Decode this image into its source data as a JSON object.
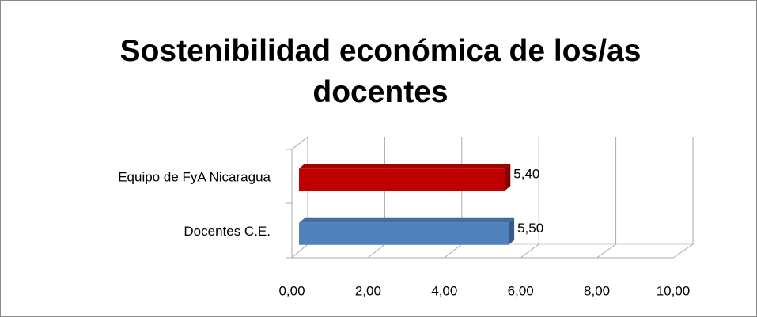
{
  "chart_data": {
    "type": "bar3d_horizontal",
    "title": "Sostenibilidad económica de los/as docentes",
    "categories": [
      "Docentes C.E.",
      "Equipo de FyA Nicaragua"
    ],
    "values": [
      5.5,
      5.4
    ],
    "value_labels": [
      "5,50",
      "5,40"
    ],
    "colors": [
      "#4f81bd",
      "#c00000"
    ],
    "xlim": [
      0,
      10
    ],
    "xticks": [
      {
        "value": 0,
        "label": "0,00"
      },
      {
        "value": 2,
        "label": "2,00"
      },
      {
        "value": 4,
        "label": "4,00"
      },
      {
        "value": 6,
        "label": "6,00"
      },
      {
        "value": 8,
        "label": "8,00"
      },
      {
        "value": 10,
        "label": "10,00"
      }
    ],
    "grid": true
  }
}
